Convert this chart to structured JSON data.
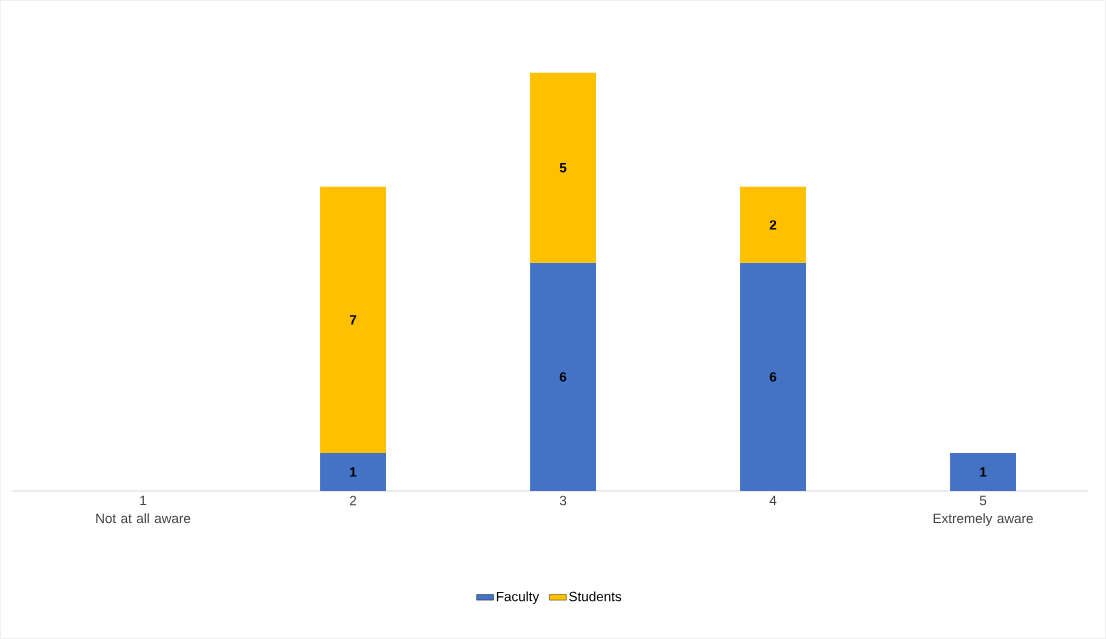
{
  "chart_data": {
    "type": "bar",
    "stacked": true,
    "data_labels": true,
    "legend": "bottom",
    "categories": [
      "1\nNot at all aware",
      "2",
      "3",
      "4",
      "5\nExtremely aware"
    ],
    "series": [
      {
        "name": "Faculty",
        "color": "#4472c4",
        "values": [
          null,
          1,
          6,
          6,
          1
        ]
      },
      {
        "name": "Students",
        "color": "#ffc000",
        "values": [
          null,
          7,
          5,
          2,
          null
        ]
      }
    ]
  }
}
